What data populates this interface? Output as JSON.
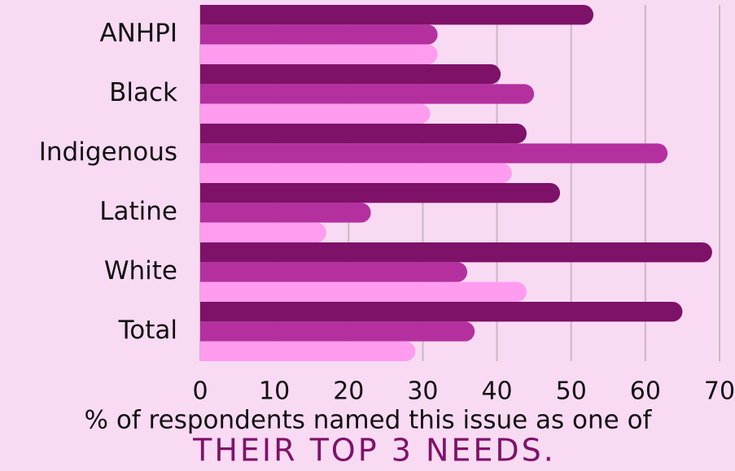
{
  "chart_data": {
    "type": "hbar",
    "categories": [
      "ANHPI",
      "Black",
      "Indigenous",
      "Latine",
      "White",
      "Total"
    ],
    "series": [
      {
        "color": "#7e1269",
        "values": [
          53,
          40.5,
          44,
          48.5,
          69,
          65
        ]
      },
      {
        "color": "#b5309f",
        "values": [
          32,
          45,
          63,
          23,
          36,
          37
        ]
      },
      {
        "color": "#ff9cf0",
        "values": [
          32,
          31,
          42,
          17,
          44,
          29
        ]
      }
    ],
    "xlim": [
      0,
      70
    ],
    "xticks": [
      0,
      10,
      20,
      30,
      40,
      50,
      60,
      70
    ],
    "grid": true,
    "xlabel": [
      "% of respondents named this issue as one of",
      "THEIR TOP 3 NEEDS."
    ]
  }
}
